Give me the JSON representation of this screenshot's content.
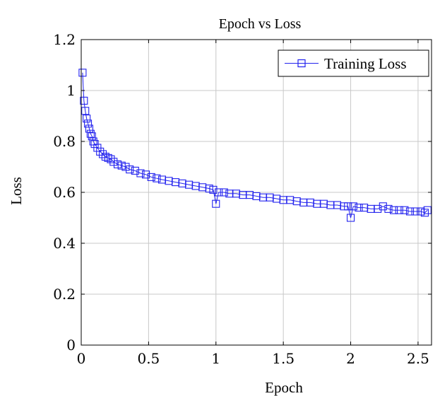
{
  "chart_data": {
    "type": "line",
    "title": "Epoch vs Loss",
    "xlabel": "Epoch",
    "ylabel": "Loss",
    "xlim": [
      0,
      2.6
    ],
    "ylim": [
      0,
      1.2
    ],
    "x_ticks": [
      0,
      0.5,
      1,
      1.5,
      2,
      2.5
    ],
    "x_tick_labels": [
      "0",
      "0.5",
      "1",
      "1.5",
      "2",
      "2.5"
    ],
    "y_ticks": [
      0,
      0.2,
      0.4,
      0.6,
      0.8,
      1.0,
      1.2
    ],
    "y_tick_labels": [
      "0",
      "0.2",
      "0.4",
      "0.6",
      "0.8",
      "1",
      "1.2"
    ],
    "grid": true,
    "legend_position": "top-right",
    "colors": {
      "series": "#2222ee",
      "grid": "#c8c8c8",
      "axis": "#000000"
    },
    "series": [
      {
        "name": "Training Loss",
        "marker": "square",
        "x": [
          0.01,
          0.02,
          0.03,
          0.04,
          0.05,
          0.06,
          0.07,
          0.08,
          0.09,
          0.1,
          0.12,
          0.14,
          0.16,
          0.18,
          0.2,
          0.22,
          0.24,
          0.27,
          0.3,
          0.33,
          0.36,
          0.4,
          0.44,
          0.48,
          0.52,
          0.56,
          0.6,
          0.65,
          0.7,
          0.75,
          0.8,
          0.85,
          0.9,
          0.95,
          0.98,
          1.0,
          1.02,
          1.06,
          1.1,
          1.15,
          1.2,
          1.25,
          1.3,
          1.35,
          1.4,
          1.45,
          1.5,
          1.55,
          1.6,
          1.65,
          1.7,
          1.75,
          1.8,
          1.85,
          1.9,
          1.95,
          1.98,
          2.0,
          2.02,
          2.06,
          2.1,
          2.15,
          2.2,
          2.24,
          2.28,
          2.32,
          2.36,
          2.4,
          2.44,
          2.48,
          2.52,
          2.55,
          2.57
        ],
        "y": [
          1.07,
          0.96,
          0.92,
          0.89,
          0.87,
          0.85,
          0.83,
          0.82,
          0.8,
          0.79,
          0.775,
          0.76,
          0.75,
          0.74,
          0.735,
          0.73,
          0.72,
          0.71,
          0.705,
          0.7,
          0.69,
          0.685,
          0.675,
          0.67,
          0.66,
          0.655,
          0.65,
          0.645,
          0.64,
          0.635,
          0.63,
          0.625,
          0.62,
          0.615,
          0.61,
          0.555,
          0.6,
          0.6,
          0.595,
          0.595,
          0.59,
          0.59,
          0.585,
          0.58,
          0.58,
          0.575,
          0.57,
          0.57,
          0.565,
          0.56,
          0.56,
          0.555,
          0.555,
          0.55,
          0.55,
          0.545,
          0.545,
          0.5,
          0.545,
          0.54,
          0.54,
          0.535,
          0.535,
          0.545,
          0.535,
          0.53,
          0.53,
          0.53,
          0.525,
          0.525,
          0.525,
          0.52,
          0.53
        ]
      }
    ]
  }
}
